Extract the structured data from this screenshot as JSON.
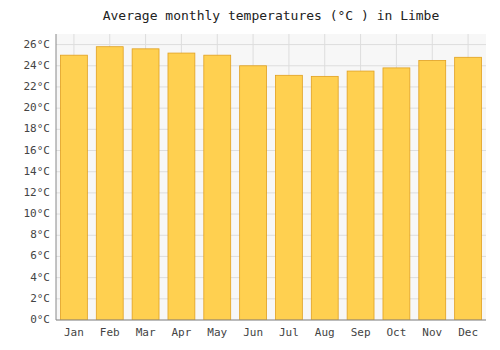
{
  "chart_data": {
    "type": "bar",
    "title": "Average monthly temperatures (°C ) in Limbe",
    "categories": [
      "Jan",
      "Feb",
      "Mar",
      "Apr",
      "May",
      "Jun",
      "Jul",
      "Aug",
      "Sep",
      "Oct",
      "Nov",
      "Dec"
    ],
    "values": [
      25.0,
      25.8,
      25.6,
      25.2,
      25.0,
      24.0,
      23.1,
      23.0,
      23.5,
      23.8,
      24.5,
      24.8
    ],
    "color": "#FFD050",
    "ylim": [
      0,
      27
    ],
    "yticks": [
      {
        "value": 0,
        "label": "0°C"
      },
      {
        "value": 2,
        "label": "2°C"
      },
      {
        "value": 4,
        "label": "4°C"
      },
      {
        "value": 6,
        "label": "6°C"
      },
      {
        "value": 8,
        "label": "8°C"
      },
      {
        "value": 10,
        "label": "10°C"
      },
      {
        "value": 12,
        "label": "12°C"
      },
      {
        "value": 14,
        "label": "14°C"
      },
      {
        "value": 16,
        "label": "16°C"
      },
      {
        "value": 18,
        "label": "18°C"
      },
      {
        "value": 20,
        "label": "20°C"
      },
      {
        "value": 22,
        "label": "22°C"
      },
      {
        "value": 24,
        "label": "24°C"
      },
      {
        "value": 26,
        "label": "26°C"
      }
    ],
    "grid": true
  }
}
